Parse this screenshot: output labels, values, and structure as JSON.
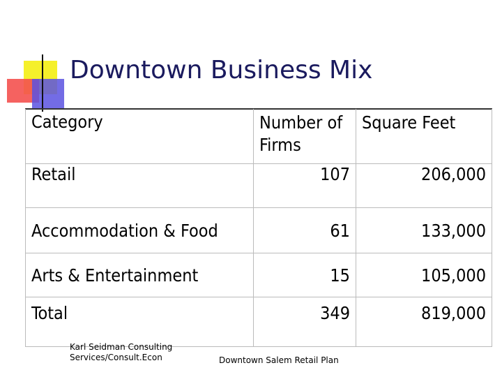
{
  "slide": {
    "title": "Downtown Business Mix"
  },
  "table": {
    "headers": {
      "category": "Category",
      "firms": "Number of Firms",
      "sqft": "Square Feet"
    },
    "rows": [
      {
        "category": "Retail",
        "firms": "107",
        "sqft": "206,000"
      },
      {
        "category": "Accommodation & Food",
        "firms": "61",
        "sqft": "133,000"
      },
      {
        "category": "Arts & Entertainment",
        "firms": "15",
        "sqft": "105,000"
      },
      {
        "category": "Total",
        "firms": "349",
        "sqft": "819,000"
      }
    ]
  },
  "footer": {
    "left_line1": "Karl Seidman Consulting",
    "left_line2": "Services/Consult.Econ",
    "center": "Downtown Salem Retail Plan"
  },
  "colors": {
    "title": "#1a1a5e",
    "accent_yellow": "#f5f02a",
    "accent_red": "#f4514f",
    "accent_blue": "#5a52e0"
  }
}
